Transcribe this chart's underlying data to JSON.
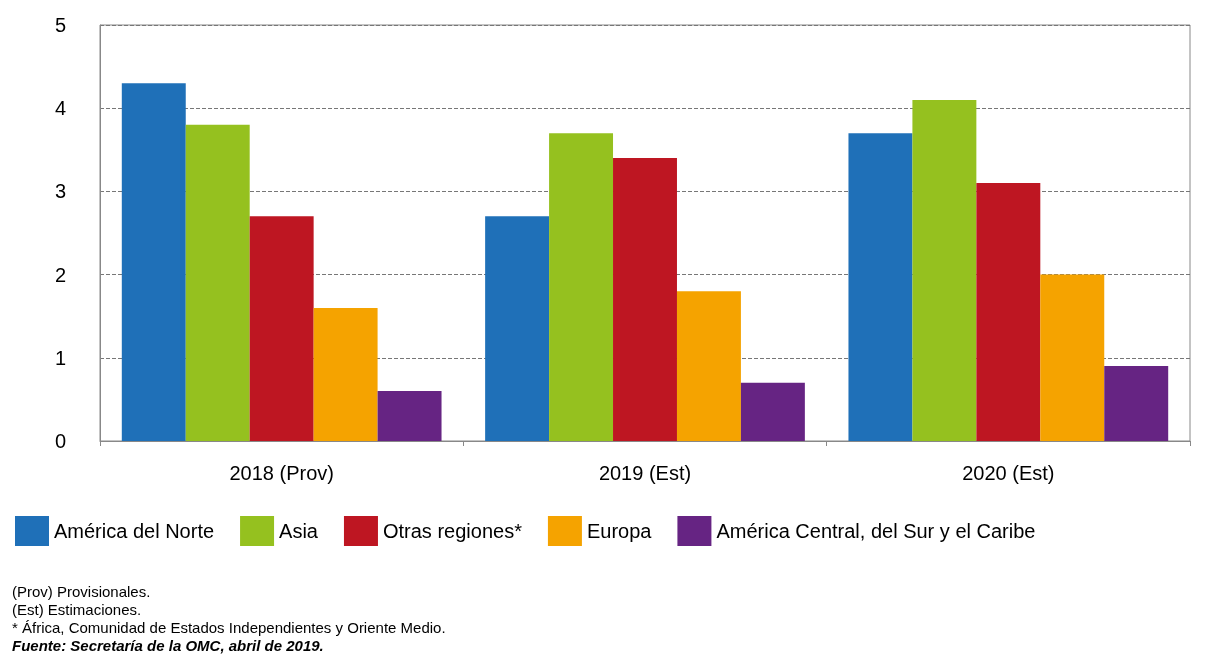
{
  "chart_data": {
    "type": "bar",
    "categories": [
      "2018 (Prov)",
      "2019 (Est)",
      "2020 (Est)"
    ],
    "series": [
      {
        "name": "América del Norte",
        "color": "#1f70b8",
        "values": [
          4.3,
          2.7,
          3.7
        ]
      },
      {
        "name": "Asia",
        "color": "#95c11f",
        "values": [
          3.8,
          3.7,
          4.1
        ]
      },
      {
        "name": "Otras regiones*",
        "color": "#be1622",
        "values": [
          2.7,
          3.4,
          3.1
        ]
      },
      {
        "name": "Europa",
        "color": "#f5a300",
        "values": [
          1.6,
          1.8,
          2.0
        ]
      },
      {
        "name": "América Central, del Sur y el Caribe",
        "color": "#662483",
        "values": [
          0.6,
          0.7,
          0.9
        ]
      }
    ],
    "ylim": [
      0,
      5
    ],
    "yticks": [
      0,
      1,
      2,
      3,
      4,
      5
    ],
    "grid": "y",
    "legend": "bottom",
    "annotations": [
      "(Prov) Provisionales.",
      "(Est) Estimaciones.",
      "* África, Comunidad de Estados Independientes y Oriente Medio.",
      "Fuente: Secretaría de la OMC, abril de 2019."
    ]
  }
}
